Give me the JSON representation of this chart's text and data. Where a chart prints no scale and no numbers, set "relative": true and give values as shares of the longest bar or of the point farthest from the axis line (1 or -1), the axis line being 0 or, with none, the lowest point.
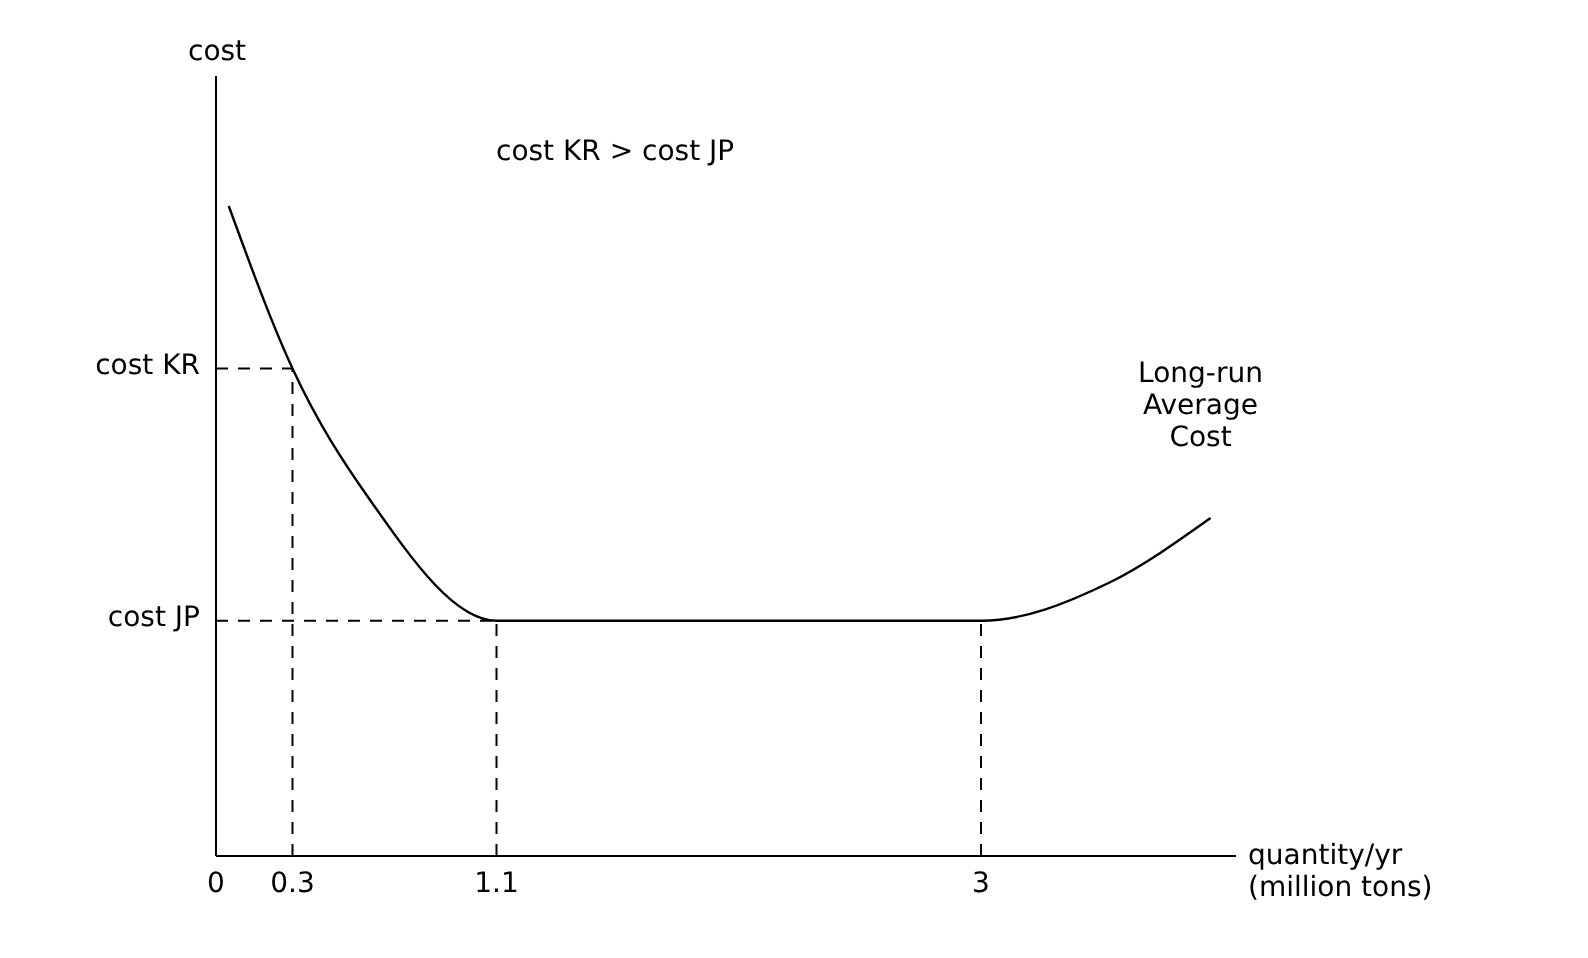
{
  "chart_data": {
    "type": "line",
    "relative": true,
    "ylabel": "cost",
    "xlabel": "quantity/yr (million tons)",
    "annotations": [
      "cost KR > cost JP"
    ],
    "x": [
      0.05,
      0.3,
      0.6,
      1.1,
      3,
      3.5,
      3.9
    ],
    "series": [
      {
        "name": "Long-run Average Cost",
        "color": "#000000",
        "values": [
          1,
          0.75,
          0.55,
          0.362,
          0.362,
          0.42,
          0.52
        ]
      }
    ],
    "xlim": [
      0,
      4
    ],
    "xticks": [
      0,
      0.3,
      1.1,
      3
    ],
    "ref_lines": [
      {
        "axis": "y",
        "value": 0.75,
        "label": "cost KR",
        "color": "#000000",
        "line_style": "dashed"
      },
      {
        "axis": "y",
        "value": 0.362,
        "label": "cost JP",
        "color": "#000000",
        "line_style": "dashed"
      },
      {
        "axis": "x",
        "value": 0.3,
        "label": null,
        "color": "#000000",
        "line_style": "dashed"
      },
      {
        "axis": "x",
        "value": 1.1,
        "label": null,
        "color": "#000000",
        "line_style": "dashed"
      },
      {
        "axis": "x",
        "value": 3,
        "label": null,
        "color": "#000000",
        "line_style": "dashed"
      }
    ],
    "grid": false,
    "legend": false,
    "marker": "none",
    "line_style": "solid"
  }
}
